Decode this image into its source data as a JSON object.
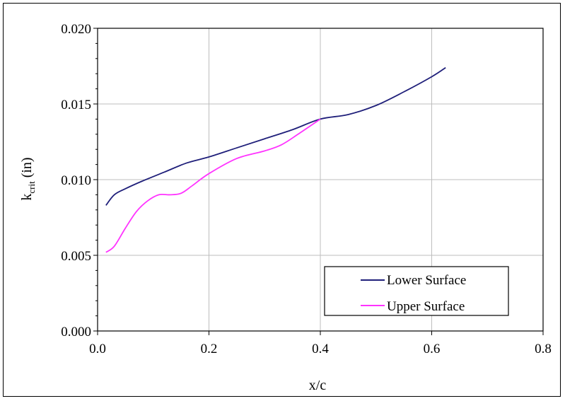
{
  "chart_data": {
    "type": "line",
    "xlabel": "x/c",
    "ylabel_main": "k",
    "ylabel_sub": "crit",
    "ylabel_unit": " (in)",
    "xlim": [
      0.0,
      0.8
    ],
    "ylim": [
      0.0,
      0.02
    ],
    "x_ticks": [
      "0.0",
      "0.2",
      "0.4",
      "0.6",
      "0.8"
    ],
    "y_ticks": [
      "0.000",
      "0.005",
      "0.010",
      "0.015",
      "0.020"
    ],
    "grid": true,
    "legend_position": "bottom-right",
    "series": [
      {
        "name": "Lower Surface",
        "color": "#1f1f7a",
        "x": [
          0.015,
          0.03,
          0.05,
          0.08,
          0.12,
          0.16,
          0.2,
          0.25,
          0.3,
          0.35,
          0.4,
          0.45,
          0.5,
          0.55,
          0.6,
          0.625
        ],
        "y": [
          0.0083,
          0.009,
          0.0094,
          0.0099,
          0.0105,
          0.0111,
          0.0115,
          0.0121,
          0.0127,
          0.0133,
          0.014,
          0.0143,
          0.0149,
          0.0158,
          0.0168,
          0.0174
        ]
      },
      {
        "name": "Upper Surface",
        "color": "#ff33ff",
        "x": [
          0.015,
          0.03,
          0.05,
          0.07,
          0.09,
          0.11,
          0.13,
          0.15,
          0.17,
          0.2,
          0.25,
          0.3,
          0.33,
          0.36,
          0.4
        ],
        "y": [
          0.0052,
          0.0056,
          0.0068,
          0.0079,
          0.0086,
          0.009,
          0.009,
          0.0091,
          0.0096,
          0.0104,
          0.0114,
          0.0119,
          0.0123,
          0.013,
          0.014
        ]
      }
    ]
  }
}
